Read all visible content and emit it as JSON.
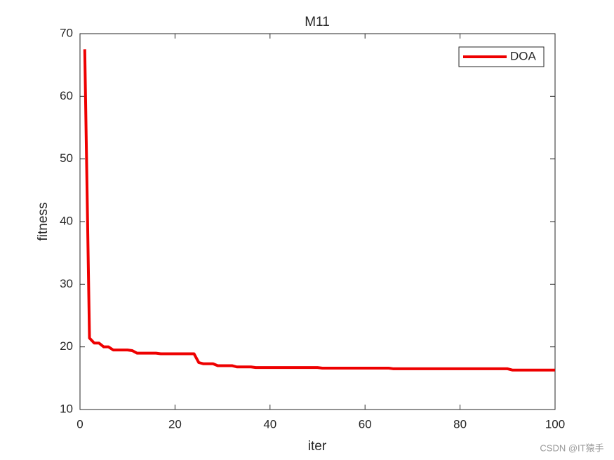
{
  "chart_data": {
    "type": "line",
    "title": "M11",
    "x_label": "iter",
    "y_label": "fitness",
    "x": [
      1,
      2,
      3,
      4,
      5,
      6,
      7,
      8,
      9,
      10,
      11,
      12,
      13,
      14,
      15,
      16,
      17,
      18,
      19,
      20,
      21,
      22,
      23,
      24,
      25,
      26,
      27,
      28,
      29,
      30,
      31,
      32,
      33,
      34,
      35,
      36,
      37,
      38,
      39,
      40,
      41,
      42,
      43,
      44,
      45,
      46,
      47,
      48,
      49,
      50,
      51,
      52,
      53,
      54,
      55,
      56,
      57,
      58,
      59,
      60,
      61,
      62,
      63,
      64,
      65,
      66,
      67,
      68,
      69,
      70,
      71,
      72,
      73,
      74,
      75,
      76,
      77,
      78,
      79,
      80,
      81,
      82,
      83,
      84,
      85,
      86,
      87,
      88,
      89,
      90,
      91,
      92,
      93,
      94,
      95,
      96,
      97,
      98,
      99,
      100
    ],
    "series": [
      {
        "name": "DOA",
        "color": "#ee0000",
        "values": [
          67.5,
          21.4,
          20.6,
          20.6,
          20.0,
          20.0,
          19.5,
          19.5,
          19.5,
          19.5,
          19.4,
          19.0,
          19.0,
          19.0,
          19.0,
          19.0,
          18.9,
          18.9,
          18.9,
          18.9,
          18.9,
          18.9,
          18.9,
          18.9,
          17.5,
          17.3,
          17.3,
          17.3,
          17.0,
          17.0,
          17.0,
          17.0,
          16.8,
          16.8,
          16.8,
          16.8,
          16.7,
          16.7,
          16.7,
          16.7,
          16.7,
          16.7,
          16.7,
          16.7,
          16.7,
          16.7,
          16.7,
          16.7,
          16.7,
          16.7,
          16.6,
          16.6,
          16.6,
          16.6,
          16.6,
          16.6,
          16.6,
          16.6,
          16.6,
          16.6,
          16.6,
          16.6,
          16.6,
          16.6,
          16.6,
          16.5,
          16.5,
          16.5,
          16.5,
          16.5,
          16.5,
          16.5,
          16.5,
          16.5,
          16.5,
          16.5,
          16.5,
          16.5,
          16.5,
          16.5,
          16.5,
          16.5,
          16.5,
          16.5,
          16.5,
          16.5,
          16.5,
          16.5,
          16.5,
          16.5,
          16.3,
          16.3,
          16.3,
          16.3,
          16.3,
          16.3,
          16.3,
          16.3,
          16.3,
          16.3
        ]
      }
    ],
    "xlim": [
      0,
      100
    ],
    "xticks": [
      0,
      20,
      40,
      60,
      80,
      100
    ],
    "ylim": [
      10,
      70
    ],
    "yticks": [
      10,
      20,
      30,
      40,
      50,
      60,
      70
    ],
    "legend_position": "top-right"
  },
  "watermark": "CSDN @IT猿手"
}
